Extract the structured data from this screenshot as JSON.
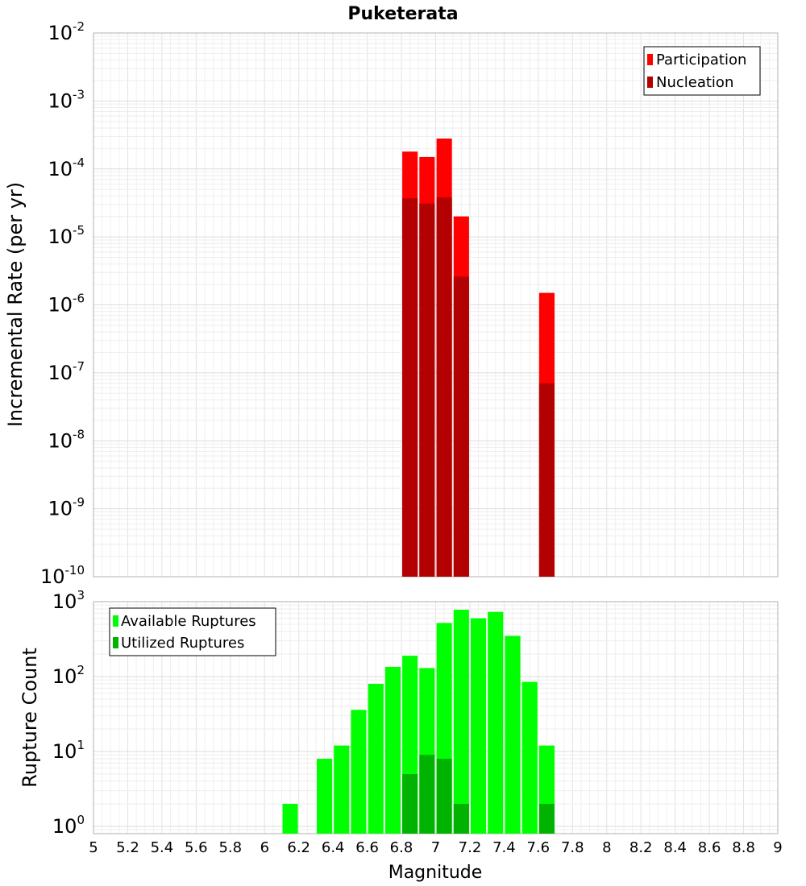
{
  "chart_data": [
    {
      "type": "bar",
      "title": "Puketerata",
      "ylabel": "Incremental Rate (per yr)",
      "xlabel": "",
      "xlim": [
        5,
        9
      ],
      "ylim": [
        1e-10,
        0.01
      ],
      "yscale": "log",
      "ytick_base": "10",
      "ytick_exponents": [
        "-10",
        "-9",
        "-8",
        "-7",
        "-6",
        "-5",
        "-4",
        "-3",
        "-2"
      ],
      "legend_position": "top-right",
      "bar_width": 0.09,
      "series": [
        {
          "name": "Participation",
          "color": "#ff0000",
          "x": [
            6.85,
            6.95,
            7.05,
            7.15,
            7.65
          ],
          "values": [
            0.00018,
            0.00015,
            0.00028,
            2e-05,
            1.5e-06
          ]
        },
        {
          "name": "Nucleation",
          "color": "#b30000",
          "x": [
            6.85,
            6.95,
            7.05,
            7.15,
            7.65
          ],
          "values": [
            3.7e-05,
            3.1e-05,
            3.8e-05,
            2.6e-06,
            7e-08
          ]
        }
      ]
    },
    {
      "type": "bar",
      "title": "",
      "ylabel": "Rupture Count",
      "xlabel": "Magnitude",
      "xlim": [
        5,
        9
      ],
      "ylim": [
        0.8,
        1000
      ],
      "yscale": "log",
      "ytick_base": "10",
      "ytick_exponents": [
        "0",
        "1",
        "2",
        "3"
      ],
      "xticks": [
        "5",
        "5.2",
        "5.4",
        "5.6",
        "5.8",
        "6",
        "6.2",
        "6.4",
        "6.6",
        "6.8",
        "7",
        "7.2",
        "7.4",
        "7.6",
        "7.8",
        "8",
        "8.2",
        "8.4",
        "8.6",
        "8.8",
        "9"
      ],
      "legend_position": "top-left",
      "bar_width": 0.09,
      "series": [
        {
          "name": "Available Ruptures",
          "color": "#00ff00",
          "x": [
            6.15,
            6.35,
            6.45,
            6.55,
            6.65,
            6.75,
            6.85,
            6.95,
            7.05,
            7.15,
            7.25,
            7.35,
            7.45,
            7.55,
            7.65
          ],
          "values": [
            2,
            8,
            12,
            36,
            80,
            135,
            190,
            130,
            520,
            780,
            600,
            730,
            350,
            85,
            12
          ]
        },
        {
          "name": "Utilized Ruptures",
          "color": "#00b300",
          "x": [
            6.85,
            6.95,
            7.05,
            7.15,
            7.65
          ],
          "values": [
            5,
            9,
            8,
            2,
            2
          ]
        }
      ]
    }
  ]
}
